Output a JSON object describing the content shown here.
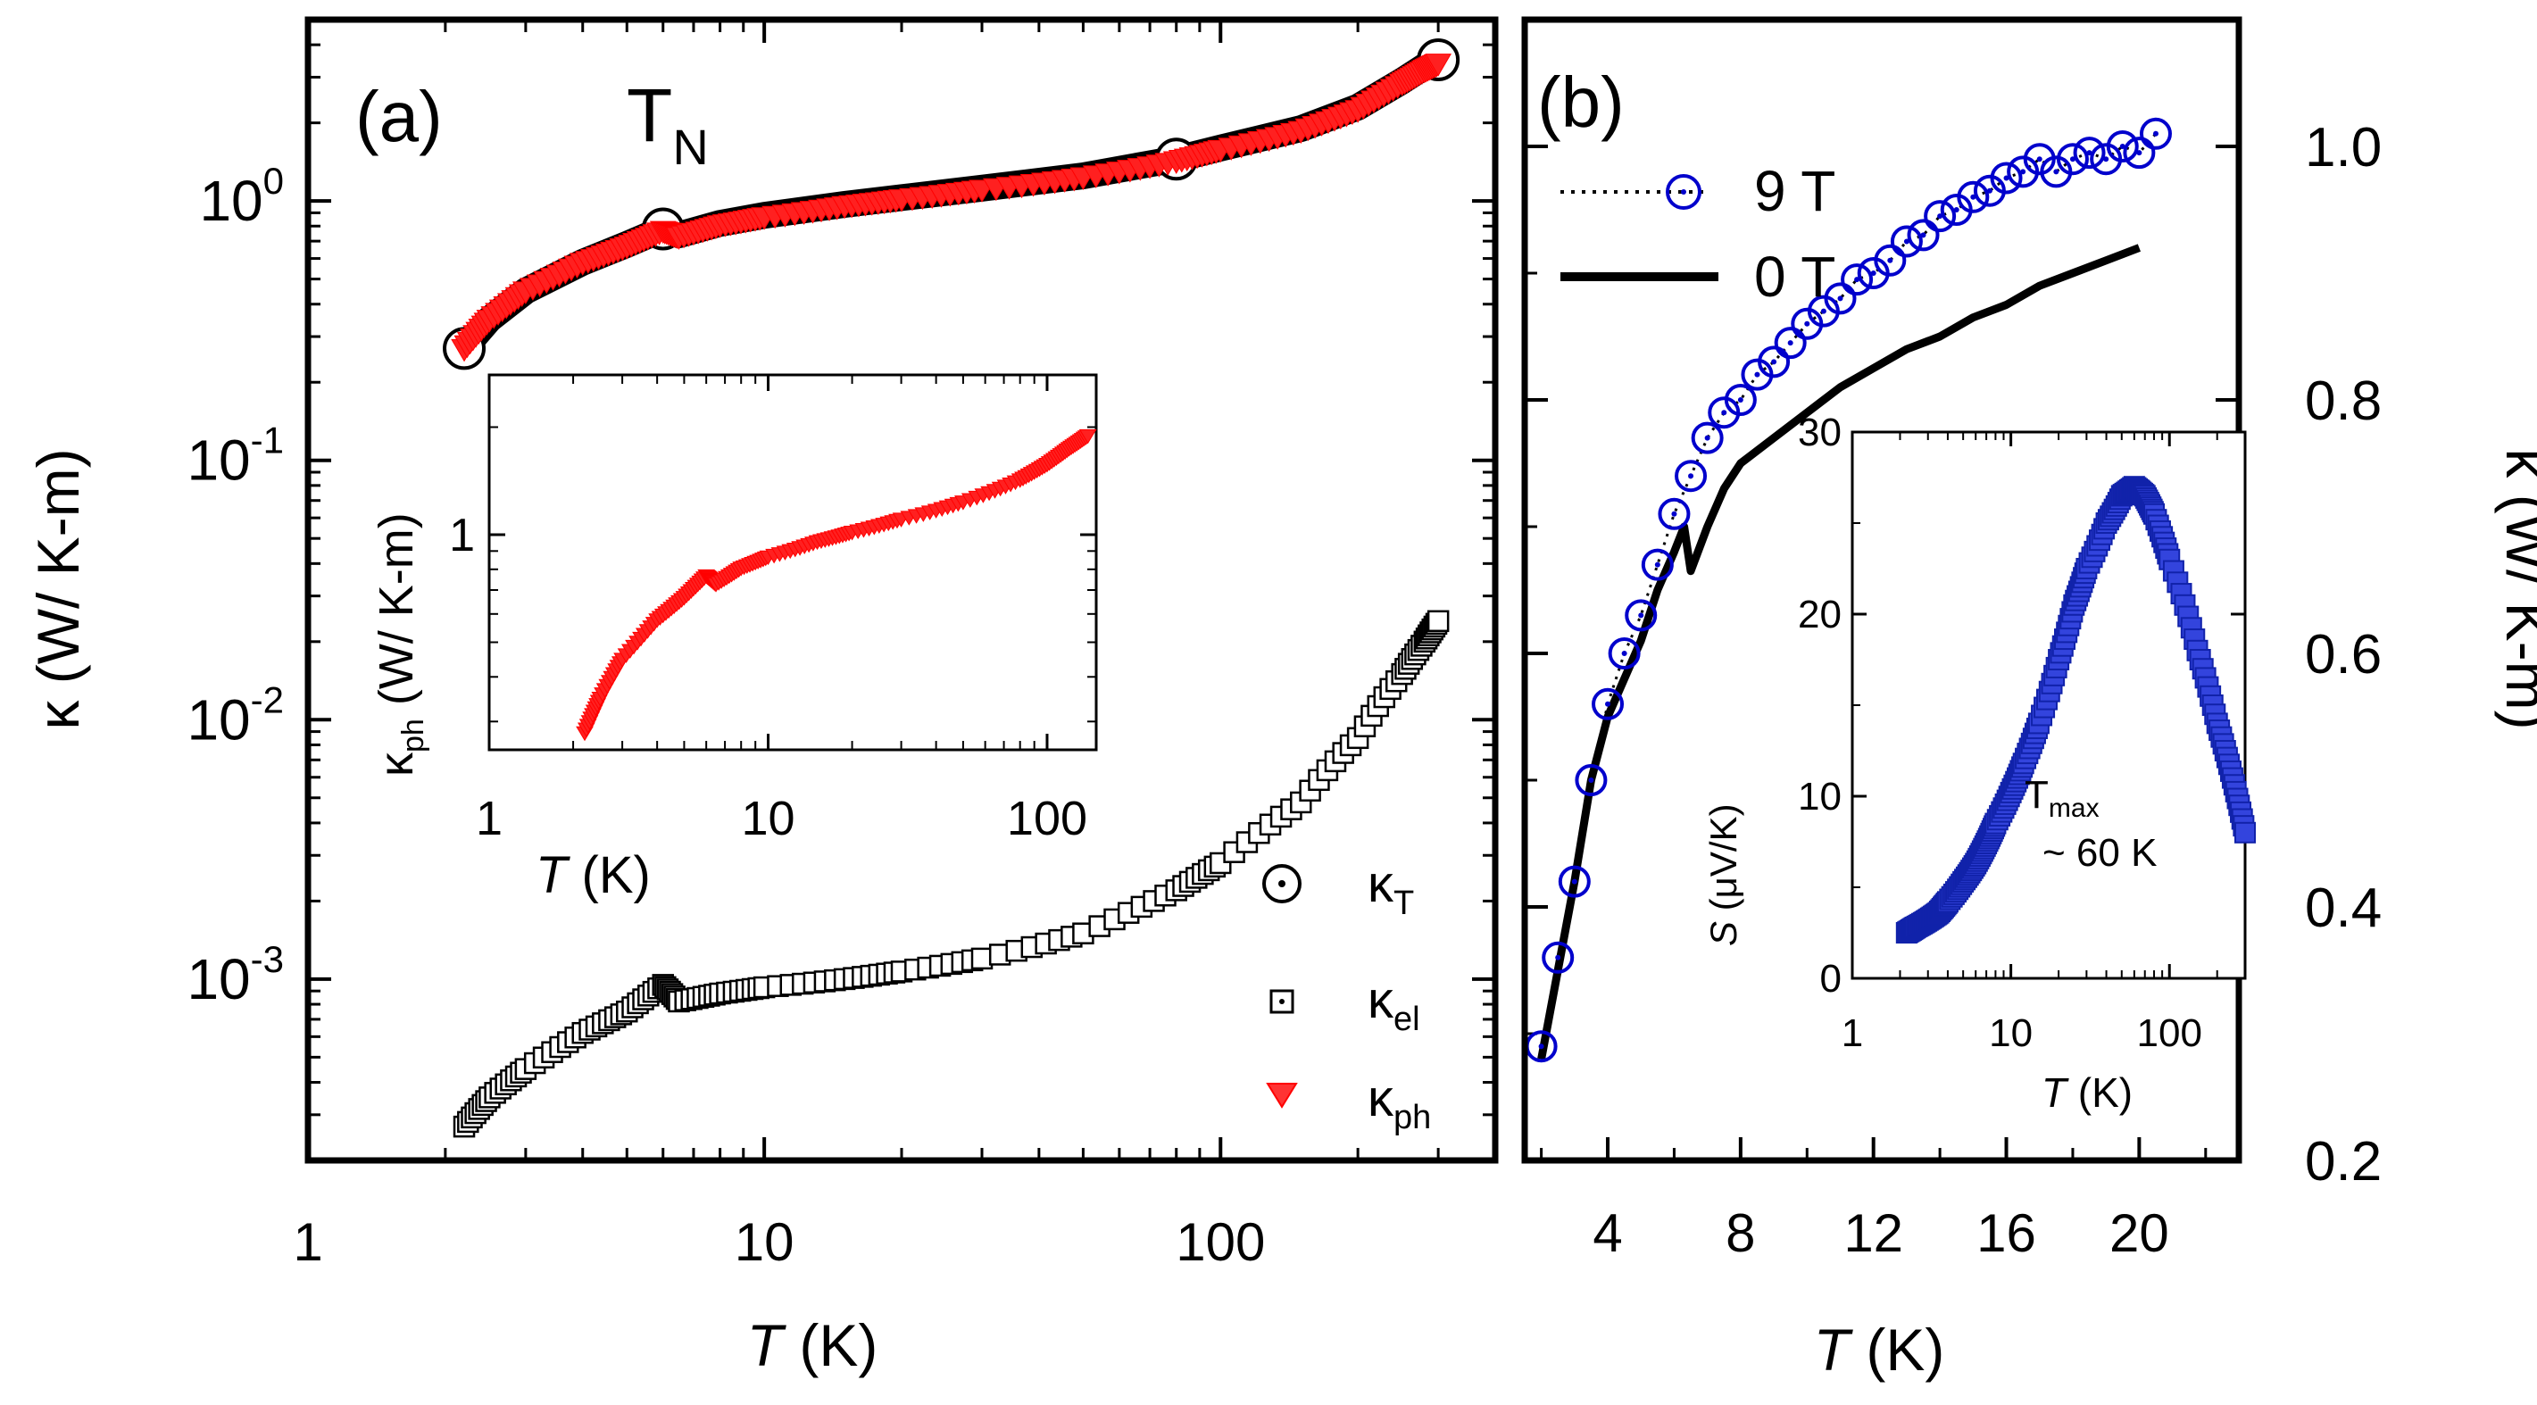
{
  "chart_data": [
    {
      "panel": "a",
      "type": "scatter",
      "panel_label": "(a)",
      "annotation": "T",
      "annotation_sub": "N",
      "xscale": "log",
      "yscale": "log",
      "xlabel_italic": "T",
      "xlabel_rest": " (K)",
      "ylabel": "κ (W/ K-m)",
      "xlim": [
        1,
        400
      ],
      "ylim": [
        0.0002,
        5
      ],
      "xticks": [
        {
          "v": 1,
          "label": "1"
        },
        {
          "v": 10,
          "label": "10"
        },
        {
          "v": 100,
          "label": "100"
        }
      ],
      "yticks": [
        {
          "v": 0.001,
          "base": "10",
          "exp": "-3"
        },
        {
          "v": 0.01,
          "base": "10",
          "exp": "-2"
        },
        {
          "v": 0.1,
          "base": "10",
          "exp": "-1"
        },
        {
          "v": 1,
          "base": "10",
          "exp": "0"
        }
      ],
      "legend": [
        {
          "key": "kT",
          "base": "κ",
          "sub": "T",
          "marker": "circle-dot",
          "color": "#000000"
        },
        {
          "key": "kel",
          "base": "κ",
          "sub": "el",
          "marker": "square-dot",
          "color": "#000000"
        },
        {
          "key": "kph",
          "base": "κ",
          "sub": "ph",
          "marker": "triangle-down",
          "color": "#ff0000"
        }
      ],
      "series": [
        {
          "name": "κT",
          "marker": "circle-dot",
          "color": "#000000",
          "points": [
            [
              2.2,
              0.27
            ],
            [
              2.5,
              0.35
            ],
            [
              3,
              0.45
            ],
            [
              4,
              0.58
            ],
            [
              5,
              0.68
            ],
            [
              6,
              0.78
            ],
            [
              6.5,
              0.74
            ],
            [
              8,
              0.82
            ],
            [
              10,
              0.88
            ],
            [
              15,
              0.97
            ],
            [
              20,
              1.03
            ],
            [
              30,
              1.12
            ],
            [
              50,
              1.25
            ],
            [
              80,
              1.45
            ],
            [
              100,
              1.6
            ],
            [
              150,
              1.9
            ],
            [
              200,
              2.3
            ],
            [
              250,
              2.9
            ],
            [
              280,
              3.3
            ],
            [
              300,
              3.5
            ]
          ]
        },
        {
          "name": "κel",
          "marker": "square-dot",
          "color": "#000000",
          "points": [
            [
              2.2,
              0.00027
            ],
            [
              2.5,
              0.00035
            ],
            [
              3,
              0.00045
            ],
            [
              4,
              0.00062
            ],
            [
              5,
              0.00075
            ],
            [
              6,
              0.00095
            ],
            [
              6.5,
              0.00082
            ],
            [
              8,
              0.00088
            ],
            [
              10,
              0.00093
            ],
            [
              15,
              0.001
            ],
            [
              20,
              0.00107
            ],
            [
              30,
              0.0012
            ],
            [
              50,
              0.0015
            ],
            [
              80,
              0.0022
            ],
            [
              100,
              0.0028
            ],
            [
              150,
              0.0048
            ],
            [
              200,
              0.0085
            ],
            [
              250,
              0.015
            ],
            [
              280,
              0.02
            ],
            [
              300,
              0.024
            ]
          ]
        },
        {
          "name": "κph",
          "marker": "triangle-down",
          "color": "#ff0000",
          "points": [
            [
              2.2,
              0.27
            ],
            [
              2.5,
              0.35
            ],
            [
              3,
              0.45
            ],
            [
              4,
              0.58
            ],
            [
              5,
              0.67
            ],
            [
              6,
              0.77
            ],
            [
              6.5,
              0.73
            ],
            [
              8,
              0.81
            ],
            [
              10,
              0.87
            ],
            [
              15,
              0.96
            ],
            [
              20,
              1.02
            ],
            [
              30,
              1.11
            ],
            [
              50,
              1.24
            ],
            [
              80,
              1.43
            ],
            [
              100,
              1.58
            ],
            [
              150,
              1.87
            ],
            [
              200,
              2.25
            ],
            [
              250,
              2.85
            ],
            [
              280,
              3.2
            ],
            [
              300,
              3.4
            ]
          ]
        }
      ],
      "inset": {
        "type": "scatter",
        "xscale": "log",
        "yscale": "log",
        "xlim": [
          1,
          150
        ],
        "ylim": [
          0.25,
          2.8
        ],
        "xticks": [
          {
            "v": 1,
            "label": "1"
          },
          {
            "v": 10,
            "label": "10"
          },
          {
            "v": 100,
            "label": "100"
          }
        ],
        "yticks": [
          {
            "v": 1,
            "label": "1"
          }
        ],
        "xlabel_italic": "T",
        "xlabel_rest": "  (K)",
        "ylabel_base": "κ",
        "ylabel_sub": "ph",
        "ylabel_rest": " (W/ K-m)",
        "series": [
          {
            "name": "κph",
            "color": "#ff0000",
            "points": [
              [
                2.2,
                0.28
              ],
              [
                2.5,
                0.35
              ],
              [
                3,
                0.45
              ],
              [
                4,
                0.58
              ],
              [
                5,
                0.67
              ],
              [
                6,
                0.77
              ],
              [
                6.5,
                0.73
              ],
              [
                8,
                0.81
              ],
              [
                10,
                0.87
              ],
              [
                15,
                0.96
              ],
              [
                20,
                1.02
              ],
              [
                30,
                1.11
              ],
              [
                50,
                1.24
              ],
              [
                80,
                1.43
              ],
              [
                100,
                1.58
              ],
              [
                120,
                1.75
              ],
              [
                140,
                1.9
              ]
            ]
          }
        ]
      }
    },
    {
      "panel": "b",
      "type": "line",
      "panel_label": "(b)",
      "xscale": "linear",
      "yscale": "linear",
      "xlabel_italic": "T",
      "xlabel_rest": " (K)",
      "ylabel": "κ (W/ K-m)",
      "xlim": [
        1.5,
        23
      ],
      "ylim": [
        0.2,
        1.1
      ],
      "xticks": [
        4,
        8,
        12,
        16,
        20
      ],
      "yticks": [
        {
          "v": 0.2,
          "label": "0.2"
        },
        {
          "v": 0.4,
          "label": "0.4"
        },
        {
          "v": 0.6,
          "label": "0.6"
        },
        {
          "v": 0.8,
          "label": "0.8"
        },
        {
          "v": 1.0,
          "label": "1.0"
        }
      ],
      "legend": [
        {
          "key": "9T",
          "label": "9 T",
          "style": "dotted-circles",
          "color": "#0000cc"
        },
        {
          "key": "0T",
          "label": "0 T",
          "style": "solid",
          "color": "#000000"
        }
      ],
      "series": [
        {
          "name": "9 T",
          "style": "dotted-circles",
          "color": "#0000cc",
          "points": [
            [
              2,
              0.29
            ],
            [
              2.5,
              0.36
            ],
            [
              3,
              0.42
            ],
            [
              3.5,
              0.5
            ],
            [
              4,
              0.56
            ],
            [
              4.5,
              0.6
            ],
            [
              5,
              0.63
            ],
            [
              5.5,
              0.67
            ],
            [
              6,
              0.71
            ],
            [
              6.5,
              0.74
            ],
            [
              7,
              0.77
            ],
            [
              7.5,
              0.79
            ],
            [
              8,
              0.8
            ],
            [
              8.5,
              0.82
            ],
            [
              9,
              0.83
            ],
            [
              9.5,
              0.845
            ],
            [
              10,
              0.86
            ],
            [
              10.5,
              0.87
            ],
            [
              11,
              0.88
            ],
            [
              11.5,
              0.895
            ],
            [
              12,
              0.9
            ],
            [
              12.5,
              0.91
            ],
            [
              13,
              0.925
            ],
            [
              13.5,
              0.93
            ],
            [
              14,
              0.945
            ],
            [
              14.5,
              0.95
            ],
            [
              15,
              0.96
            ],
            [
              15.5,
              0.965
            ],
            [
              16,
              0.975
            ],
            [
              16.5,
              0.98
            ],
            [
              17,
              0.99
            ],
            [
              17.5,
              0.98
            ],
            [
              18,
              0.99
            ],
            [
              18.5,
              0.995
            ],
            [
              19,
              0.99
            ],
            [
              19.5,
              1.0
            ],
            [
              20,
              0.995
            ],
            [
              20.5,
              1.01
            ]
          ]
        },
        {
          "name": "0 T",
          "style": "solid",
          "color": "#000000",
          "points": [
            [
              2,
              0.28
            ],
            [
              2.5,
              0.35
            ],
            [
              3,
              0.42
            ],
            [
              3.5,
              0.5
            ],
            [
              4,
              0.55
            ],
            [
              4.5,
              0.58
            ],
            [
              5,
              0.61
            ],
            [
              5.5,
              0.65
            ],
            [
              6,
              0.68
            ],
            [
              6.3,
              0.7
            ],
            [
              6.5,
              0.665
            ],
            [
              7,
              0.7
            ],
            [
              7.5,
              0.73
            ],
            [
              8,
              0.75
            ],
            [
              9,
              0.77
            ],
            [
              10,
              0.79
            ],
            [
              11,
              0.81
            ],
            [
              12,
              0.825
            ],
            [
              13,
              0.84
            ],
            [
              14,
              0.85
            ],
            [
              15,
              0.865
            ],
            [
              16,
              0.875
            ],
            [
              17,
              0.89
            ],
            [
              18,
              0.9
            ],
            [
              19,
              0.91
            ],
            [
              20,
              0.92
            ]
          ]
        }
      ],
      "inset": {
        "type": "scatter",
        "xscale": "log",
        "yscale": "linear",
        "xlim": [
          1,
          300
        ],
        "ylim": [
          0,
          30
        ],
        "xticks": [
          {
            "v": 1,
            "label": "1"
          },
          {
            "v": 10,
            "label": "10"
          },
          {
            "v": 100,
            "label": "100"
          }
        ],
        "yticks": [
          {
            "v": 0,
            "label": "0"
          },
          {
            "v": 10,
            "label": "10"
          },
          {
            "v": 20,
            "label": "20"
          },
          {
            "v": 30,
            "label": "30"
          }
        ],
        "xlabel_italic": "T",
        "xlabel_rest": " (K)",
        "ylabel_italic": "S",
        "ylabel_rest": " (μV/K)",
        "annotation_line1_base": "T",
        "annotation_line1_sub": "max",
        "annotation_line2": "~ 60 K",
        "series": [
          {
            "name": "S",
            "color": "#2233cc",
            "points": [
              [
                2.2,
                2.5
              ],
              [
                2.5,
                2.8
              ],
              [
                3,
                3.2
              ],
              [
                3.5,
                3.6
              ],
              [
                4,
                4.2
              ],
              [
                5,
                5.3
              ],
              [
                6,
                6.3
              ],
              [
                7,
                7.4
              ],
              [
                8,
                8.5
              ],
              [
                10,
                10.2
              ],
              [
                12,
                11.8
              ],
              [
                15,
                14
              ],
              [
                20,
                17.5
              ],
              [
                25,
                20.5
              ],
              [
                30,
                22.5
              ],
              [
                40,
                25
              ],
              [
                50,
                26.5
              ],
              [
                60,
                27
              ],
              [
                70,
                26.5
              ],
              [
                80,
                25.5
              ],
              [
                100,
                23
              ],
              [
                150,
                18
              ],
              [
                200,
                14
              ],
              [
                250,
                11
              ],
              [
                300,
                8
              ]
            ]
          }
        ]
      }
    }
  ]
}
